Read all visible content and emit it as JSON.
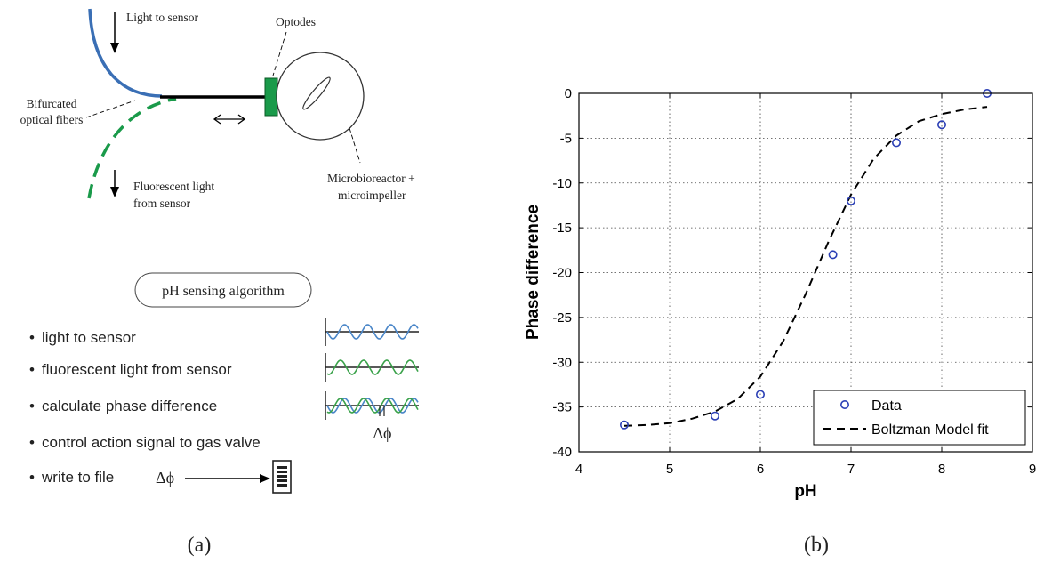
{
  "panel_a": {
    "labels": {
      "light_to_sensor": "Light to sensor",
      "optodes": "Optodes",
      "bifurcated_1": "Bifurcated",
      "bifurcated_2": "optical fibers",
      "fluorescent_1": "Fluorescent light",
      "fluorescent_2": "from sensor",
      "microbioreactor_1": "Microbioreactor +",
      "microbioreactor_2": "microimpeller"
    },
    "algorithm_title": "pH sensing algorithm",
    "steps": [
      "light to sensor",
      "fluorescent light from sensor",
      "calculate phase difference",
      "control action signal to gas valve",
      "write to file"
    ],
    "bullet": "•",
    "delta_phi": "Δϕ",
    "caption": "(a)",
    "colors": {
      "blue_wave": "#4a86c8",
      "green_wave": "#3aa24a",
      "optode": "#1a9a4a",
      "fiber_blue": "#3a6fb5"
    }
  },
  "panel_b": {
    "caption": "(b)",
    "chart_data": {
      "type": "scatter",
      "title": "",
      "xlabel": "pH",
      "ylabel": "Phase difference",
      "xlim": [
        4,
        9
      ],
      "ylim": [
        -40,
        0
      ],
      "xticks": [
        4,
        5,
        6,
        7,
        8,
        9
      ],
      "yticks": [
        0,
        -5,
        -10,
        -15,
        -20,
        -25,
        -30,
        -35,
        -40
      ],
      "grid": true,
      "legend_position": "bottom-right",
      "series": [
        {
          "name": "Data",
          "kind": "markers",
          "marker": "circle",
          "color": "#2b3fb5",
          "x": [
            4.5,
            5.5,
            6.0,
            6.8,
            7.0,
            7.5,
            8.0,
            8.5
          ],
          "y": [
            -37.0,
            -36.0,
            -33.6,
            -18.0,
            -12.0,
            -5.5,
            -3.5,
            0.0
          ]
        },
        {
          "name": "Boltzman Model fit",
          "kind": "dashed-line",
          "color": "#000000",
          "x": [
            4.5,
            4.75,
            5.0,
            5.25,
            5.5,
            5.75,
            6.0,
            6.25,
            6.5,
            6.75,
            7.0,
            7.25,
            7.5,
            7.75,
            8.0,
            8.25,
            8.5
          ],
          "y": [
            -37.1,
            -37.0,
            -36.8,
            -36.3,
            -35.5,
            -34.1,
            -31.6,
            -27.7,
            -22.4,
            -16.6,
            -11.3,
            -7.3,
            -4.7,
            -3.1,
            -2.3,
            -1.8,
            -1.5
          ]
        }
      ]
    }
  }
}
